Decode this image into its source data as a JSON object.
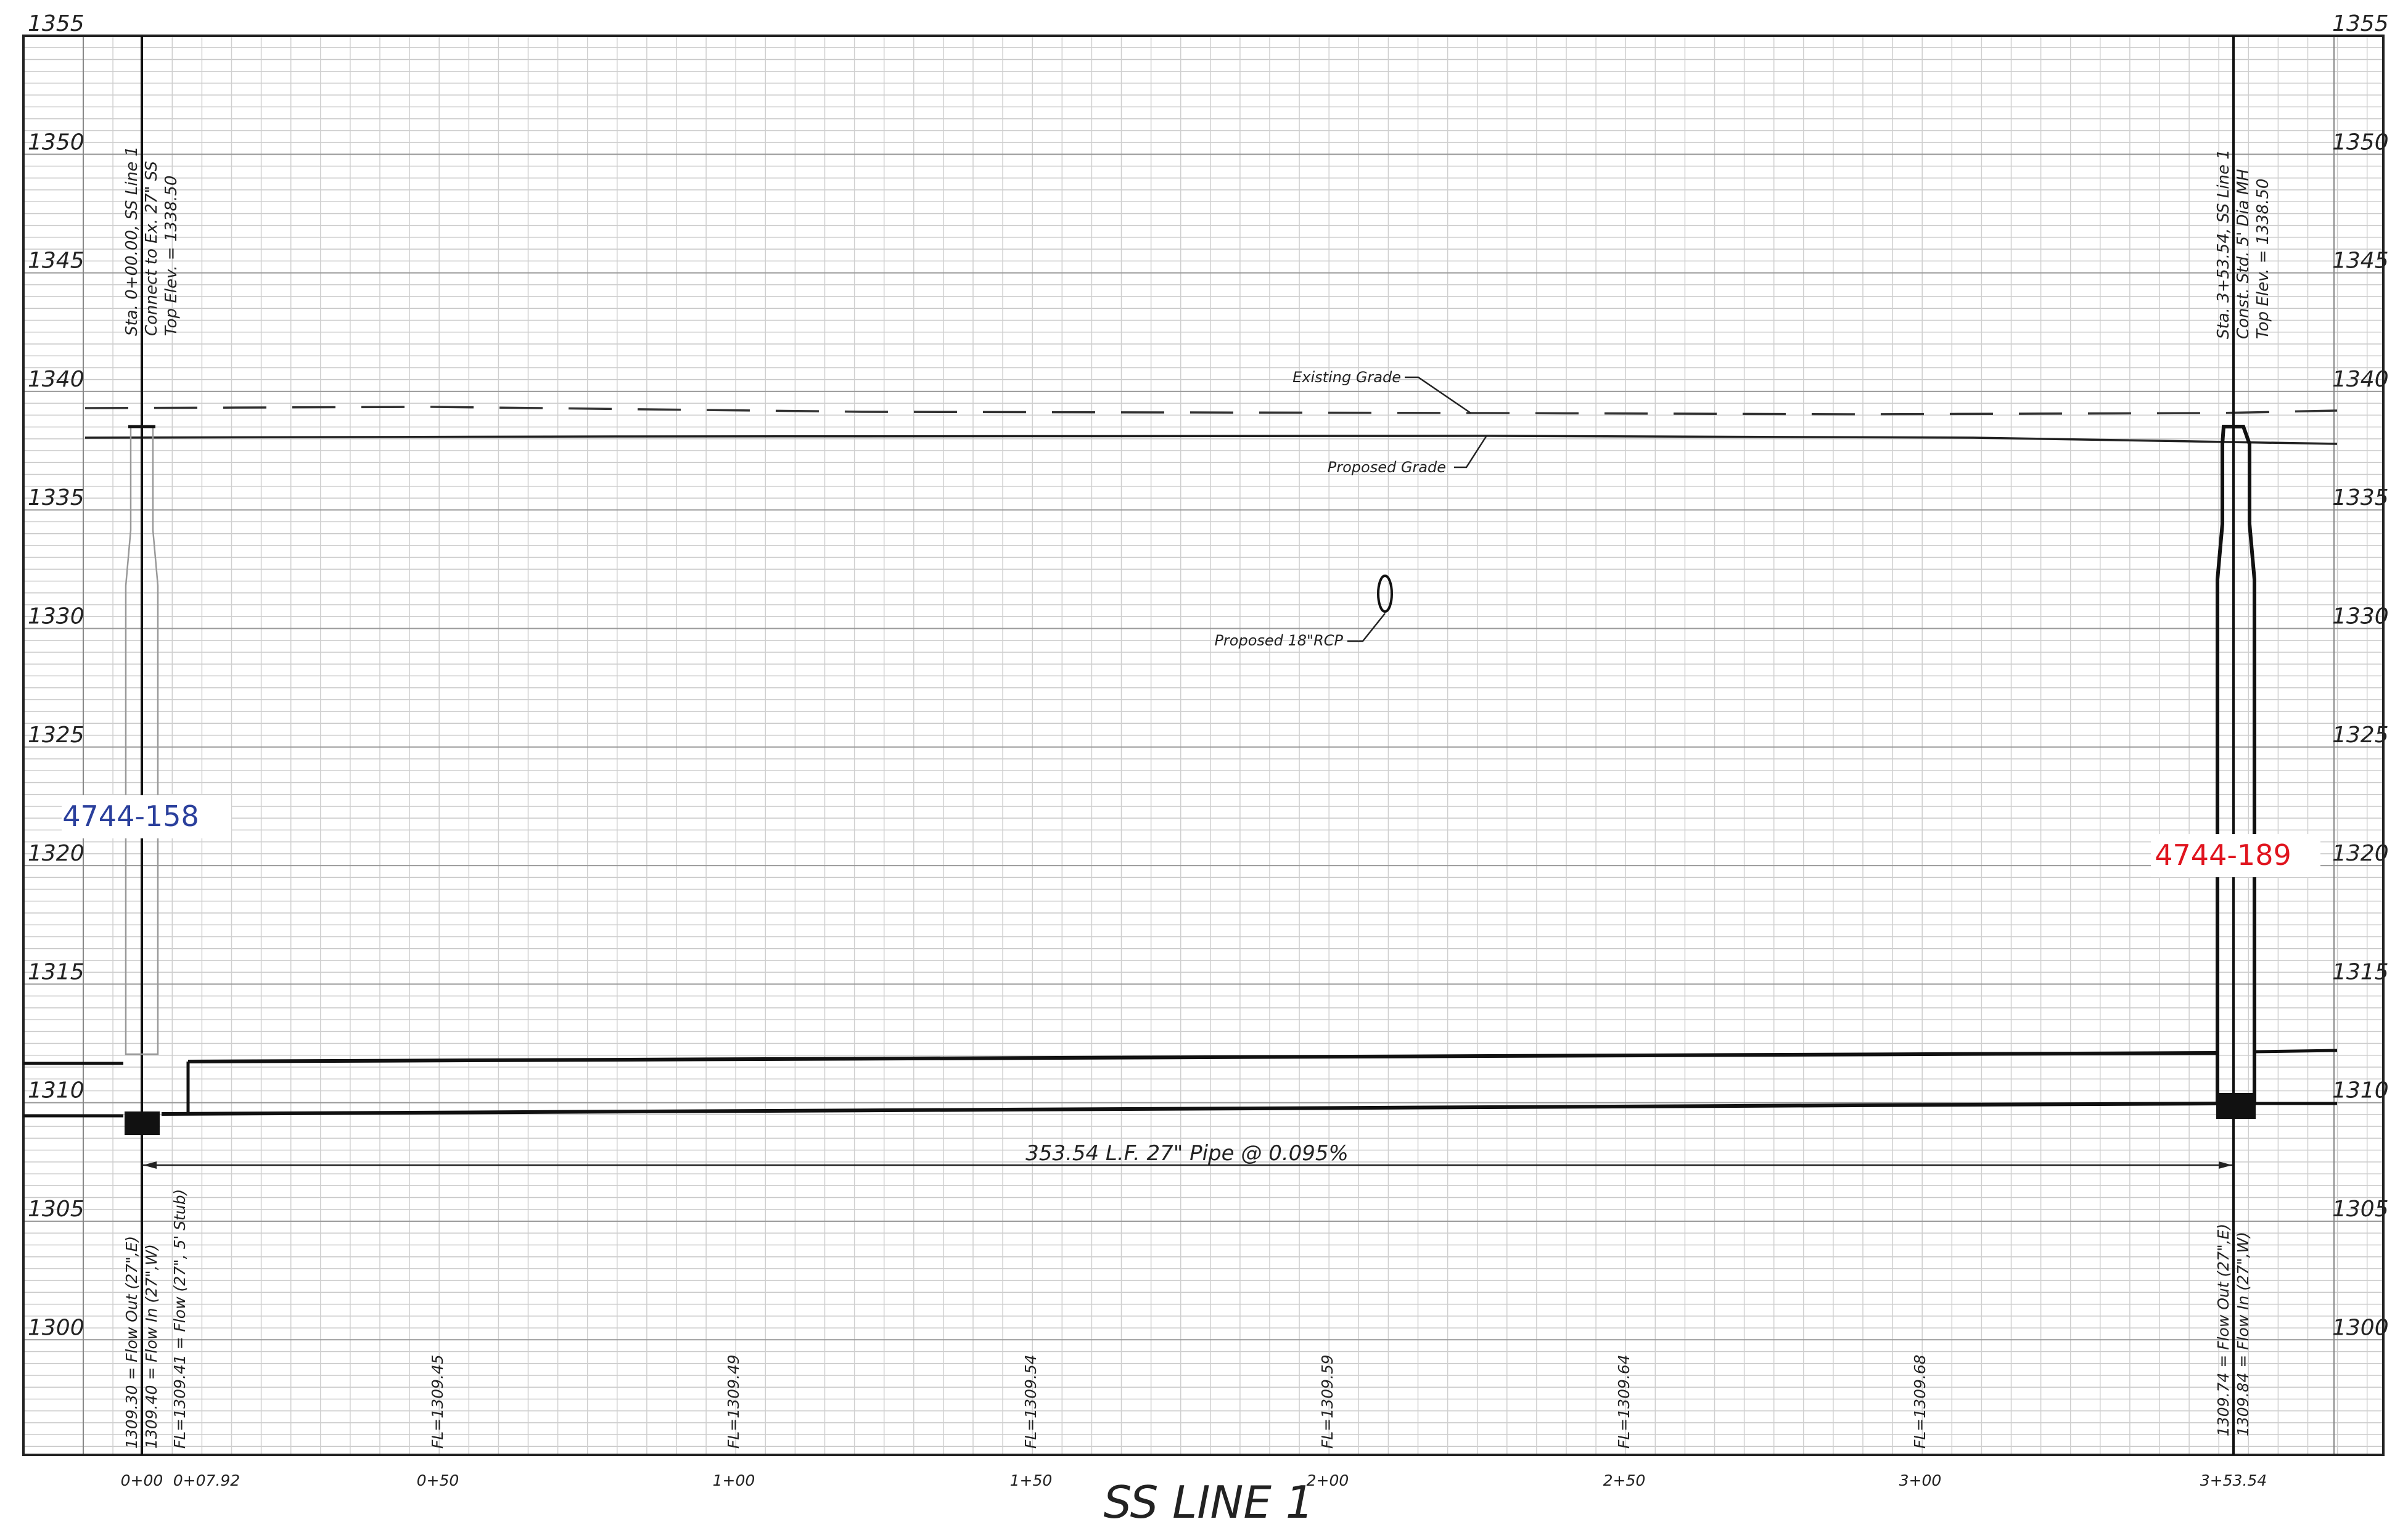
{
  "drawing_title": "SS LINE 1",
  "elevation_labels": [
    "1355",
    "1350",
    "1345",
    "1340",
    "1335",
    "1330",
    "1325",
    "1320",
    "1315",
    "1310",
    "1305",
    "1300"
  ],
  "station_labels": [
    "0+00",
    "0+07.92",
    "0+50",
    "1+00",
    "1+50",
    "2+00",
    "2+50",
    "3+00",
    "3+53.54"
  ],
  "flowline_labels": [
    "FL=1309.45",
    "FL=1309.49",
    "FL=1309.54",
    "FL=1309.59",
    "FL=1309.64",
    "FL=1309.68"
  ],
  "callouts": {
    "existing_grade": "Existing Grade",
    "proposed_grade": "Proposed Grade",
    "proposed_rcp": "Proposed 18\"RCP",
    "pipe_run": "353.54 L.F. 27\" Pipe @ 0.095%"
  },
  "structure_start": {
    "top": [
      "Sta. 0+00.00, SS Line 1",
      "Connect to Ex. 27\" SS",
      "Top Elev. = 1338.50"
    ],
    "bottom": [
      "1309.30 = Flow Out (27\",E)",
      "1309.40 = Flow In (27\",W)",
      "FL=1309.41 = Flow (27\", 5' Stub)"
    ]
  },
  "structure_end": {
    "top": [
      "Sta. 3+53.54, SS Line 1",
      "Const. Std. 5' Dia MH",
      "Top Elev. = 1338.50"
    ],
    "bottom": [
      "1309.74 = Flow Out (27\",E)",
      "1309.84 = Flow In (27\",W)"
    ]
  },
  "sheet_refs": {
    "left": "4744-158",
    "right": "4744-189",
    "left_color": "#2a3f9c",
    "right_color": "#e0141e"
  }
}
